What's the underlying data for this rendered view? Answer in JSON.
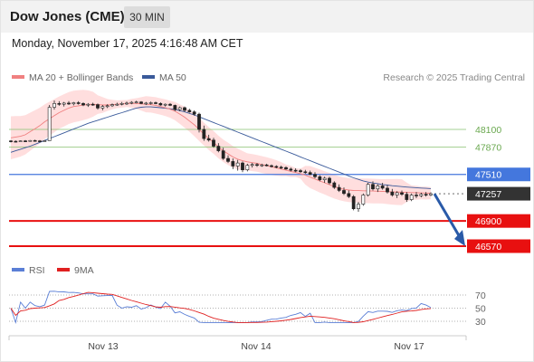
{
  "header": {
    "title": "Dow Jones (CME)",
    "timeframe": "30 MIN"
  },
  "timestamp": "Monday, November 17, 2025 4:16:48 AM CET",
  "legend": {
    "ma_bb_label": "MA 20 + Bollinger Bands",
    "ma_bb_color": "#f08080",
    "ma50_label": "MA 50",
    "ma50_color": "#3a5a9a"
  },
  "credit": "Research © 2025 Trading Central",
  "rsi_legend": {
    "rsi_label": "RSI",
    "rsi_color": "#5b7fd6",
    "ma9_label": "9MA",
    "ma9_color": "#e02020"
  },
  "colors": {
    "support": "#e81010",
    "resistance_line": "#4477dd",
    "target_green": "#88c070",
    "last_price_bg": "#333333",
    "arrow": "#2a5aa8",
    "bb_fill": "#ffd8d8"
  },
  "chart_data": [
    {
      "type": "candlestick",
      "title": "",
      "x_ticks": [
        "Nov 13",
        "Nov 14",
        "Nov 17"
      ],
      "price_levels": [
        {
          "label": "48100",
          "value": 48100,
          "kind": "target",
          "style": "thin-green"
        },
        {
          "label": "47870",
          "value": 47870,
          "kind": "target",
          "style": "thin-green"
        },
        {
          "label": "47510",
          "value": 47510,
          "kind": "pivot",
          "style": "blue"
        },
        {
          "label": "47257",
          "value": 47257,
          "kind": "last-price",
          "style": "dotted"
        },
        {
          "label": "46900",
          "value": 46900,
          "kind": "support",
          "style": "red"
        },
        {
          "label": "46570",
          "value": 46570,
          "kind": "support",
          "style": "red"
        }
      ],
      "ohlc_approx": [
        [
          47950,
          47960,
          47930,
          47945
        ],
        [
          47945,
          47955,
          47930,
          47940
        ],
        [
          47940,
          47955,
          47935,
          47950
        ],
        [
          47950,
          47960,
          47940,
          47945
        ],
        [
          47945,
          47960,
          47940,
          47955
        ],
        [
          47955,
          47965,
          47945,
          47950
        ],
        [
          47950,
          47960,
          47940,
          47948
        ],
        [
          47948,
          47960,
          47940,
          47952
        ],
        [
          47952,
          48420,
          47950,
          48390
        ],
        [
          48390,
          48480,
          48360,
          48440
        ],
        [
          48440,
          48470,
          48410,
          48430
        ],
        [
          48430,
          48460,
          48400,
          48445
        ],
        [
          48445,
          48470,
          48420,
          48435
        ],
        [
          48435,
          48460,
          48415,
          48450
        ],
        [
          48450,
          48470,
          48425,
          48440
        ],
        [
          48440,
          48455,
          48405,
          48420
        ],
        [
          48420,
          48445,
          48395,
          48430
        ],
        [
          48430,
          48450,
          48410,
          48425
        ],
        [
          48425,
          48440,
          48360,
          48380
        ],
        [
          48380,
          48420,
          48350,
          48400
        ],
        [
          48400,
          48430,
          48380,
          48410
        ],
        [
          48410,
          48440,
          48395,
          48425
        ],
        [
          48425,
          48450,
          48410,
          48430
        ],
        [
          48430,
          48460,
          48415,
          48440
        ],
        [
          48440,
          48465,
          48420,
          48445
        ],
        [
          48445,
          48470,
          48430,
          48455
        ],
        [
          48455,
          48475,
          48440,
          48460
        ],
        [
          48460,
          48470,
          48430,
          48440
        ],
        [
          48440,
          48460,
          48420,
          48445
        ],
        [
          48445,
          48465,
          48425,
          48450
        ],
        [
          48450,
          48465,
          48430,
          48440
        ],
        [
          48440,
          48455,
          48410,
          48420
        ],
        [
          48420,
          48440,
          48400,
          48430
        ],
        [
          48430,
          48445,
          48405,
          48415
        ],
        [
          48415,
          48425,
          48340,
          48360
        ],
        [
          48360,
          48400,
          48340,
          48385
        ],
        [
          48385,
          48400,
          48330,
          48350
        ],
        [
          48350,
          48370,
          48320,
          48330
        ],
        [
          48330,
          48350,
          48280,
          48300
        ],
        [
          48300,
          48320,
          48060,
          48100
        ],
        [
          48100,
          48150,
          47950,
          47980
        ],
        [
          47980,
          48030,
          47940,
          47960
        ],
        [
          47960,
          47990,
          47860,
          47880
        ],
        [
          47880,
          47920,
          47800,
          47820
        ],
        [
          47820,
          47860,
          47700,
          47720
        ],
        [
          47720,
          47760,
          47660,
          47680
        ],
        [
          47680,
          47720,
          47580,
          47620
        ],
        [
          47620,
          47700,
          47560,
          47660
        ],
        [
          47660,
          47680,
          47540,
          47570
        ],
        [
          47570,
          47650,
          47550,
          47630
        ],
        [
          47630,
          47660,
          47600,
          47640
        ],
        [
          47640,
          47660,
          47610,
          47630
        ],
        [
          47630,
          47650,
          47610,
          47635
        ],
        [
          47635,
          47650,
          47615,
          47625
        ],
        [
          47625,
          47640,
          47600,
          47615
        ],
        [
          47615,
          47630,
          47590,
          47605
        ],
        [
          47605,
          47625,
          47580,
          47600
        ],
        [
          47600,
          47615,
          47570,
          47580
        ],
        [
          47580,
          47600,
          47550,
          47565
        ],
        [
          47565,
          47590,
          47540,
          47560
        ],
        [
          47560,
          47580,
          47530,
          47545
        ],
        [
          47545,
          47570,
          47520,
          47535
        ],
        [
          47535,
          47560,
          47500,
          47510
        ],
        [
          47510,
          47540,
          47460,
          47480
        ],
        [
          47480,
          47500,
          47420,
          47440
        ],
        [
          47440,
          47480,
          47400,
          47460
        ],
        [
          47460,
          47480,
          47380,
          47400
        ],
        [
          47400,
          47420,
          47320,
          47340
        ],
        [
          47340,
          47380,
          47280,
          47300
        ],
        [
          47300,
          47340,
          47240,
          47260
        ],
        [
          47260,
          47300,
          47200,
          47220
        ],
        [
          47220,
          47240,
          47040,
          47060
        ],
        [
          47060,
          47150,
          47020,
          47120
        ],
        [
          47120,
          47260,
          47100,
          47240
        ],
        [
          47240,
          47400,
          47220,
          47380
        ],
        [
          47380,
          47420,
          47300,
          47320
        ],
        [
          47320,
          47380,
          47280,
          47360
        ],
        [
          47360,
          47400,
          47310,
          47330
        ],
        [
          47330,
          47370,
          47260,
          47280
        ],
        [
          47280,
          47320,
          47220,
          47240
        ],
        [
          47240,
          47290,
          47200,
          47270
        ],
        [
          47270,
          47300,
          47230,
          47250
        ],
        [
          47250,
          47280,
          47150,
          47180
        ],
        [
          47180,
          47260,
          47160,
          47240
        ],
        [
          47240,
          47280,
          47200,
          47230
        ],
        [
          47230,
          47270,
          47210,
          47250
        ],
        [
          47250,
          47280,
          47220,
          47240
        ],
        [
          47240,
          47275,
          47225,
          47257
        ]
      ],
      "ma20_approx": [
        47990,
        48000,
        48010,
        48030,
        48070,
        48110,
        48150,
        48200,
        48240,
        48280,
        48320,
        48350,
        48380,
        48400,
        48410,
        48420,
        48425,
        48430,
        48425,
        48420,
        48420,
        48425,
        48430,
        48435,
        48440,
        48442,
        48440,
        48435,
        48430,
        48425,
        48415,
        48400,
        48385,
        48365,
        48340,
        48300,
        48260,
        48210,
        48160,
        48100,
        48040,
        47980,
        47930,
        47870,
        47820,
        47780,
        47740,
        47710,
        47690,
        47675,
        47665,
        47655,
        47640,
        47625,
        47610,
        47595,
        47580,
        47565,
        47550,
        47535,
        47520,
        47500,
        47475,
        47450,
        47425,
        47400,
        47375,
        47350,
        47330,
        47315,
        47305,
        47300,
        47298,
        47296,
        47295,
        47292,
        47290,
        47288,
        47285,
        47282,
        47280,
        47278,
        47275,
        47272,
        47270,
        47268,
        47266,
        47264
      ],
      "ma50_approx": [
        47800,
        47820,
        47840,
        47860,
        47880,
        47905,
        47930,
        47955,
        47980,
        48005,
        48030,
        48055,
        48080,
        48105,
        48130,
        48155,
        48180,
        48200,
        48220,
        48240,
        48260,
        48280,
        48300,
        48320,
        48340,
        48360,
        48380,
        48390,
        48395,
        48395,
        48390,
        48385,
        48378,
        48370,
        48360,
        48345,
        48330,
        48310,
        48290,
        48265,
        48240,
        48215,
        48190,
        48165,
        48140,
        48115,
        48090,
        48065,
        48040,
        48015,
        47990,
        47965,
        47940,
        47915,
        47890,
        47865,
        47840,
        47815,
        47790,
        47765,
        47740,
        47715,
        47690,
        47665,
        47640,
        47615,
        47590,
        47565,
        47540,
        47515,
        47490,
        47465,
        47445,
        47425,
        47410,
        47398,
        47388,
        47378,
        47370,
        47362,
        47356,
        47350,
        47345,
        47340,
        47336,
        47332,
        47328,
        47324
      ],
      "rsi": {
        "levels": [
          {
            "label": "70",
            "value": 70
          },
          {
            "label": "50",
            "value": 50
          },
          {
            "label": "30",
            "value": 30
          }
        ]
      }
    }
  ]
}
